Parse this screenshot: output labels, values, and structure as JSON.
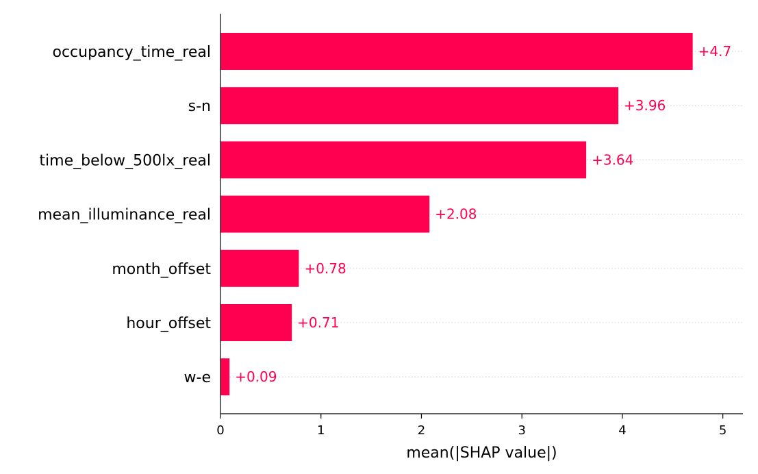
{
  "chart_data": {
    "type": "bar",
    "orientation": "horizontal",
    "categories": [
      "occupancy_time_real",
      "s-n",
      "time_below_500lx_real",
      "mean_illuminance_real",
      "month_offset",
      "hour_offset",
      "w-e"
    ],
    "values": [
      4.7,
      3.96,
      3.64,
      2.08,
      0.78,
      0.71,
      0.09
    ],
    "value_labels": [
      "+4.7",
      "+3.96",
      "+3.64",
      "+2.08",
      "+0.78",
      "+0.71",
      "+0.09"
    ],
    "xlabel": "mean(|SHAP value|)",
    "ylabel": "",
    "xlim": [
      0,
      5.2
    ],
    "xticks": [
      0,
      1,
      2,
      3,
      4,
      5
    ],
    "xtick_labels": [
      "0",
      "1",
      "2",
      "3",
      "4",
      "5"
    ],
    "bar_color": "#ff0051",
    "label_color": "#ff0051",
    "gridlines": "dotted horizontal guide per bar"
  }
}
